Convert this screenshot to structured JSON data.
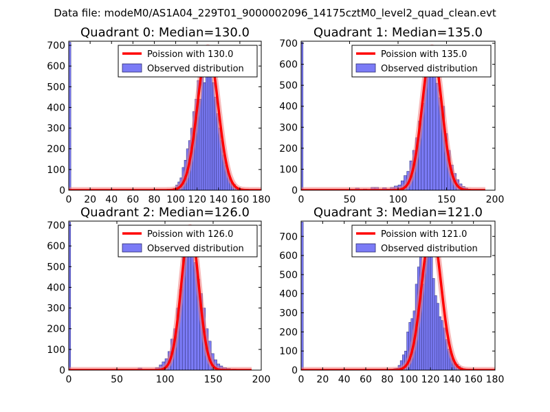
{
  "suptitle": "Data file: modeM0/AS1A04_229T01_9000002096_14175cztM0_level2_quad_clean.evt",
  "colors": {
    "bar_fill": "#7b7bf6",
    "bar_edge": "#2b2b6e",
    "curve": "#ff0000",
    "curve_halo": "#f08080",
    "axis": "#000000"
  },
  "chart_data": [
    {
      "type": "bar",
      "title": "Quadrant 0: Median=130.0",
      "xlim": [
        0,
        180
      ],
      "ylim": [
        0,
        720
      ],
      "xticks": [
        0,
        20,
        40,
        60,
        80,
        100,
        120,
        140,
        160,
        180
      ],
      "yticks": [
        0,
        100,
        200,
        300,
        400,
        500,
        600,
        700
      ],
      "legend": {
        "curve_label": "Poission with 130.0",
        "bar_label": "Observed distribution",
        "position": "top-right"
      },
      "bins": [
        {
          "x0": 0,
          "x1": 2,
          "y": 715
        },
        {
          "x0": 80,
          "x1": 84,
          "y": 4
        },
        {
          "x0": 98,
          "x1": 100,
          "y": 10
        },
        {
          "x0": 100,
          "x1": 102,
          "y": 25
        },
        {
          "x0": 102,
          "x1": 104,
          "y": 40
        },
        {
          "x0": 104,
          "x1": 106,
          "y": 60
        },
        {
          "x0": 106,
          "x1": 108,
          "y": 110
        },
        {
          "x0": 108,
          "x1": 110,
          "y": 145
        },
        {
          "x0": 110,
          "x1": 112,
          "y": 200
        },
        {
          "x0": 112,
          "x1": 114,
          "y": 240
        },
        {
          "x0": 114,
          "x1": 116,
          "y": 300
        },
        {
          "x0": 116,
          "x1": 118,
          "y": 380
        },
        {
          "x0": 118,
          "x1": 120,
          "y": 440
        },
        {
          "x0": 120,
          "x1": 122,
          "y": 530
        },
        {
          "x0": 122,
          "x1": 124,
          "y": 440
        },
        {
          "x0": 124,
          "x1": 126,
          "y": 570
        },
        {
          "x0": 126,
          "x1": 128,
          "y": 520
        },
        {
          "x0": 128,
          "x1": 130,
          "y": 580
        },
        {
          "x0": 130,
          "x1": 132,
          "y": 610
        },
        {
          "x0": 132,
          "x1": 134,
          "y": 680
        },
        {
          "x0": 134,
          "x1": 136,
          "y": 520
        },
        {
          "x0": 136,
          "x1": 138,
          "y": 450
        },
        {
          "x0": 138,
          "x1": 140,
          "y": 370
        },
        {
          "x0": 140,
          "x1": 142,
          "y": 300
        },
        {
          "x0": 142,
          "x1": 144,
          "y": 240
        },
        {
          "x0": 144,
          "x1": 146,
          "y": 170
        },
        {
          "x0": 146,
          "x1": 148,
          "y": 120
        },
        {
          "x0": 148,
          "x1": 150,
          "y": 90
        },
        {
          "x0": 150,
          "x1": 152,
          "y": 60
        },
        {
          "x0": 152,
          "x1": 154,
          "y": 35
        },
        {
          "x0": 154,
          "x1": 156,
          "y": 28
        },
        {
          "x0": 156,
          "x1": 158,
          "y": 15
        },
        {
          "x0": 158,
          "x1": 160,
          "y": 8
        },
        {
          "x0": 164,
          "x1": 166,
          "y": 5
        }
      ],
      "curve": {
        "mu": 130,
        "xmin": 0,
        "xmax": 180,
        "peak": 690,
        "sigma": 9.5
      }
    },
    {
      "type": "bar",
      "title": "Quadrant 1: Median=135.0",
      "xlim": [
        0,
        200
      ],
      "ylim": [
        0,
        710
      ],
      "xticks": [
        0,
        50,
        100,
        150,
        200
      ],
      "yticks": [
        0,
        100,
        200,
        300,
        400,
        500,
        600,
        700
      ],
      "legend": {
        "curve_label": "Poission with 135.0",
        "bar_label": "Observed distribution",
        "position": "top-right"
      },
      "bins": [
        {
          "x0": 0,
          "x1": 2,
          "y": 705
        },
        {
          "x0": 56,
          "x1": 60,
          "y": 10
        },
        {
          "x0": 64,
          "x1": 68,
          "y": 6
        },
        {
          "x0": 72,
          "x1": 76,
          "y": 14
        },
        {
          "x0": 76,
          "x1": 80,
          "y": 14
        },
        {
          "x0": 84,
          "x1": 88,
          "y": 12
        },
        {
          "x0": 88,
          "x1": 92,
          "y": 5
        },
        {
          "x0": 92,
          "x1": 96,
          "y": 14
        },
        {
          "x0": 96,
          "x1": 100,
          "y": 20
        },
        {
          "x0": 100,
          "x1": 103,
          "y": 25
        },
        {
          "x0": 103,
          "x1": 106,
          "y": 45
        },
        {
          "x0": 106,
          "x1": 109,
          "y": 70
        },
        {
          "x0": 109,
          "x1": 112,
          "y": 90
        },
        {
          "x0": 112,
          "x1": 115,
          "y": 140
        },
        {
          "x0": 115,
          "x1": 118,
          "y": 190
        },
        {
          "x0": 118,
          "x1": 121,
          "y": 250
        },
        {
          "x0": 121,
          "x1": 124,
          "y": 330
        },
        {
          "x0": 124,
          "x1": 127,
          "y": 415
        },
        {
          "x0": 127,
          "x1": 130,
          "y": 550
        },
        {
          "x0": 130,
          "x1": 133,
          "y": 600
        },
        {
          "x0": 133,
          "x1": 136,
          "y": 620
        },
        {
          "x0": 136,
          "x1": 139,
          "y": 575
        },
        {
          "x0": 139,
          "x1": 142,
          "y": 510
        },
        {
          "x0": 142,
          "x1": 145,
          "y": 440
        },
        {
          "x0": 145,
          "x1": 148,
          "y": 400
        },
        {
          "x0": 148,
          "x1": 151,
          "y": 270
        },
        {
          "x0": 151,
          "x1": 154,
          "y": 190
        },
        {
          "x0": 154,
          "x1": 157,
          "y": 120
        },
        {
          "x0": 157,
          "x1": 160,
          "y": 80
        },
        {
          "x0": 160,
          "x1": 163,
          "y": 50
        },
        {
          "x0": 163,
          "x1": 166,
          "y": 30
        },
        {
          "x0": 166,
          "x1": 169,
          "y": 18
        },
        {
          "x0": 169,
          "x1": 172,
          "y": 10
        }
      ],
      "curve": {
        "mu": 135,
        "xmin": 0,
        "xmax": 190,
        "peak": 680,
        "sigma": 10
      }
    },
    {
      "type": "bar",
      "title": "Quadrant 2: Median=126.0",
      "xlim": [
        0,
        200
      ],
      "ylim": [
        0,
        720
      ],
      "xticks": [
        0,
        50,
        100,
        150,
        200
      ],
      "yticks": [
        0,
        100,
        200,
        300,
        400,
        500,
        600,
        700
      ],
      "legend": {
        "curve_label": "Poission with 126.0",
        "bar_label": "Observed distribution",
        "position": "top-right"
      },
      "bins": [
        {
          "x0": 0,
          "x1": 2,
          "y": 715
        },
        {
          "x0": 72,
          "x1": 76,
          "y": 10
        },
        {
          "x0": 90,
          "x1": 94,
          "y": 12
        },
        {
          "x0": 94,
          "x1": 97,
          "y": 25
        },
        {
          "x0": 97,
          "x1": 100,
          "y": 40
        },
        {
          "x0": 100,
          "x1": 103,
          "y": 55
        },
        {
          "x0": 103,
          "x1": 106,
          "y": 90
        },
        {
          "x0": 106,
          "x1": 109,
          "y": 150
        },
        {
          "x0": 109,
          "x1": 112,
          "y": 200
        },
        {
          "x0": 112,
          "x1": 115,
          "y": 300
        },
        {
          "x0": 115,
          "x1": 118,
          "y": 390
        },
        {
          "x0": 118,
          "x1": 121,
          "y": 580
        },
        {
          "x0": 121,
          "x1": 124,
          "y": 630
        },
        {
          "x0": 124,
          "x1": 127,
          "y": 640
        },
        {
          "x0": 127,
          "x1": 130,
          "y": 590
        },
        {
          "x0": 130,
          "x1": 133,
          "y": 520
        },
        {
          "x0": 133,
          "x1": 136,
          "y": 440
        },
        {
          "x0": 136,
          "x1": 139,
          "y": 370
        },
        {
          "x0": 139,
          "x1": 142,
          "y": 300
        },
        {
          "x0": 142,
          "x1": 145,
          "y": 200
        },
        {
          "x0": 145,
          "x1": 148,
          "y": 140
        },
        {
          "x0": 148,
          "x1": 151,
          "y": 80
        },
        {
          "x0": 151,
          "x1": 154,
          "y": 50
        },
        {
          "x0": 154,
          "x1": 157,
          "y": 30
        },
        {
          "x0": 157,
          "x1": 160,
          "y": 20
        },
        {
          "x0": 160,
          "x1": 164,
          "y": 12
        },
        {
          "x0": 164,
          "x1": 168,
          "y": 8
        },
        {
          "x0": 170,
          "x1": 174,
          "y": 5
        }
      ],
      "curve": {
        "mu": 126,
        "xmin": 0,
        "xmax": 190,
        "peak": 690,
        "sigma": 9
      }
    },
    {
      "type": "bar",
      "title": "Quadrant 3: Median=121.0",
      "xlim": [
        0,
        180
      ],
      "ylim": [
        0,
        780
      ],
      "xticks": [
        0,
        20,
        40,
        60,
        80,
        100,
        120,
        140,
        160,
        180
      ],
      "yticks": [
        0,
        100,
        200,
        300,
        400,
        500,
        600,
        700
      ],
      "legend": {
        "curve_label": "Poission with 121.0",
        "bar_label": "Observed distribution",
        "position": "top-right"
      },
      "bins": [
        {
          "x0": 0,
          "x1": 2,
          "y": 775
        },
        {
          "x0": 52,
          "x1": 54,
          "y": 4
        },
        {
          "x0": 56,
          "x1": 58,
          "y": 3
        },
        {
          "x0": 72,
          "x1": 74,
          "y": 4
        },
        {
          "x0": 80,
          "x1": 82,
          "y": 3
        },
        {
          "x0": 84,
          "x1": 86,
          "y": 5
        },
        {
          "x0": 86,
          "x1": 88,
          "y": 8
        },
        {
          "x0": 88,
          "x1": 90,
          "y": 10
        },
        {
          "x0": 90,
          "x1": 92,
          "y": 25
        },
        {
          "x0": 92,
          "x1": 94,
          "y": 50
        },
        {
          "x0": 94,
          "x1": 96,
          "y": 80
        },
        {
          "x0": 96,
          "x1": 98,
          "y": 100
        },
        {
          "x0": 98,
          "x1": 100,
          "y": 200
        },
        {
          "x0": 100,
          "x1": 102,
          "y": 250
        },
        {
          "x0": 102,
          "x1": 104,
          "y": 270
        },
        {
          "x0": 104,
          "x1": 106,
          "y": 310
        },
        {
          "x0": 106,
          "x1": 108,
          "y": 450
        },
        {
          "x0": 108,
          "x1": 110,
          "y": 540
        },
        {
          "x0": 110,
          "x1": 112,
          "y": 620
        },
        {
          "x0": 112,
          "x1": 114,
          "y": 450
        },
        {
          "x0": 114,
          "x1": 116,
          "y": 570
        },
        {
          "x0": 116,
          "x1": 118,
          "y": 620
        },
        {
          "x0": 118,
          "x1": 120,
          "y": 720
        },
        {
          "x0": 120,
          "x1": 122,
          "y": 650
        },
        {
          "x0": 122,
          "x1": 124,
          "y": 480
        },
        {
          "x0": 124,
          "x1": 126,
          "y": 390
        },
        {
          "x0": 126,
          "x1": 128,
          "y": 350
        },
        {
          "x0": 128,
          "x1": 130,
          "y": 280
        },
        {
          "x0": 130,
          "x1": 132,
          "y": 260
        },
        {
          "x0": 132,
          "x1": 134,
          "y": 220
        },
        {
          "x0": 134,
          "x1": 136,
          "y": 160
        },
        {
          "x0": 136,
          "x1": 138,
          "y": 110
        },
        {
          "x0": 138,
          "x1": 140,
          "y": 90
        },
        {
          "x0": 140,
          "x1": 142,
          "y": 60
        },
        {
          "x0": 142,
          "x1": 144,
          "y": 40
        },
        {
          "x0": 144,
          "x1": 146,
          "y": 30
        },
        {
          "x0": 146,
          "x1": 148,
          "y": 20
        },
        {
          "x0": 148,
          "x1": 150,
          "y": 12
        },
        {
          "x0": 150,
          "x1": 152,
          "y": 8
        }
      ],
      "curve": {
        "mu": 121,
        "xmin": 0,
        "xmax": 180,
        "peak": 740,
        "sigma": 9
      }
    }
  ]
}
